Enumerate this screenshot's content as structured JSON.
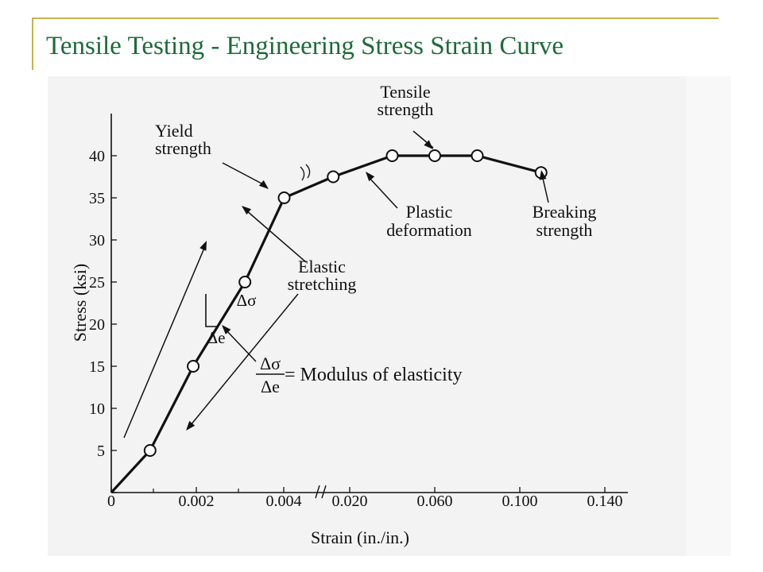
{
  "slide": {
    "title": "Tensile Testing - Engineering Stress Strain Curve"
  },
  "colors": {
    "title": "#1c6b3a",
    "frame": "#c8b24c",
    "curve": "#111111"
  },
  "chart_data": {
    "type": "line",
    "xlabel": "Strain (in./in.)",
    "ylabel": "Stress (ksi)",
    "x_ticks": [
      "0",
      "0.002",
      "0.004",
      "0.020",
      "0.060",
      "0.100",
      "0.140"
    ],
    "y_ticks": [
      0,
      5,
      10,
      15,
      20,
      25,
      30,
      35,
      40
    ],
    "ylim": [
      0,
      45
    ],
    "x_axis_note": "broken axis: linear 0–0.004, compressed scale 0.004–0.140",
    "series": [
      {
        "points": [
          {
            "x": 0,
            "y": 0
          },
          {
            "x": 0.0009,
            "y": 5
          },
          {
            "x": 0.0019,
            "y": 15
          },
          {
            "x": 0.0031,
            "y": 25
          },
          {
            "x": 0.0041,
            "y": 35
          },
          {
            "x": 0.016,
            "y": 37.5
          },
          {
            "x": 0.04,
            "y": 40
          },
          {
            "x": 0.06,
            "y": 40
          },
          {
            "x": 0.08,
            "y": 40
          },
          {
            "x": 0.11,
            "y": 38
          }
        ]
      }
    ],
    "annotations": [
      {
        "id": "yield",
        "lines": [
          "Yield",
          "strength"
        ]
      },
      {
        "id": "tensile",
        "lines": [
          "Tensile",
          "strength"
        ]
      },
      {
        "id": "plastic",
        "lines": [
          "Plastic",
          "deformation"
        ]
      },
      {
        "id": "breaking",
        "lines": [
          "Breaking",
          "strength"
        ]
      },
      {
        "id": "elastic",
        "lines": [
          "Elastic",
          "stretching"
        ]
      },
      {
        "id": "dsigma",
        "lines": [
          "Δσ"
        ]
      },
      {
        "id": "de",
        "lines": [
          "Δe"
        ]
      },
      {
        "id": "modulus_num",
        "lines": [
          "Δσ"
        ]
      },
      {
        "id": "modulus_den",
        "lines": [
          "Δe"
        ]
      },
      {
        "id": "modulus_eq",
        "lines": [
          "= Modulus of elasticity"
        ]
      }
    ]
  }
}
